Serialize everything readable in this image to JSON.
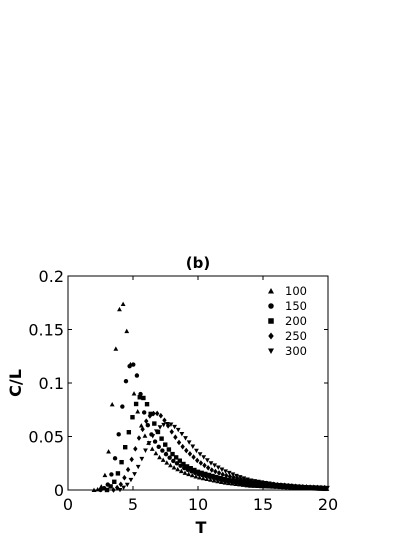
{
  "chart_data": {
    "type": "scatter",
    "title": "(b)",
    "xlabel": "T",
    "ylabel": "C/L",
    "xlim": [
      0,
      20
    ],
    "ylim": [
      0,
      0.2
    ],
    "xticks": [
      0,
      5,
      10,
      15,
      20
    ],
    "xtick_labels": [
      "0",
      "5",
      "10",
      "15",
      "20"
    ],
    "yticks": [
      0,
      0.05,
      0.1,
      0.15,
      0.2
    ],
    "ytick_labels": [
      "0",
      "0.05",
      "0.1",
      "0.15",
      "0.2"
    ],
    "grid": false,
    "legend_position": "top-right",
    "series": [
      {
        "name": "100",
        "marker": "triangle-up",
        "x": [
          2.0,
          2.5,
          3.0,
          3.3,
          3.6,
          3.9,
          4.1,
          4.3,
          4.6,
          5.0,
          5.5,
          6.0,
          6.5,
          7.0,
          8.0,
          9.0,
          10.0,
          12.0,
          14.0,
          16.0,
          18.0,
          20.0
        ],
        "y": [
          0.0,
          0.001,
          0.02,
          0.06,
          0.12,
          0.165,
          0.178,
          0.172,
          0.14,
          0.095,
          0.065,
          0.048,
          0.038,
          0.031,
          0.022,
          0.016,
          0.012,
          0.007,
          0.004,
          0.003,
          0.002,
          0.001
        ]
      },
      {
        "name": "150",
        "marker": "circle",
        "x": [
          2.5,
          3.0,
          3.5,
          4.0,
          4.3,
          4.6,
          4.9,
          5.2,
          5.5,
          5.8,
          6.2,
          6.6,
          7.0,
          8.0,
          9.0,
          10.0,
          12.0,
          14.0,
          16.0,
          18.0,
          20.0
        ],
        "y": [
          0.0,
          0.003,
          0.02,
          0.06,
          0.09,
          0.112,
          0.12,
          0.113,
          0.095,
          0.075,
          0.058,
          0.047,
          0.04,
          0.028,
          0.02,
          0.015,
          0.009,
          0.005,
          0.003,
          0.002,
          0.001
        ]
      },
      {
        "name": "200",
        "marker": "square",
        "x": [
          3.0,
          3.5,
          4.0,
          4.5,
          5.0,
          5.3,
          5.6,
          5.9,
          6.2,
          6.5,
          7.0,
          7.5,
          8.0,
          9.0,
          10.0,
          12.0,
          14.0,
          16.0,
          18.0,
          20.0
        ],
        "y": [
          0.0,
          0.006,
          0.02,
          0.045,
          0.07,
          0.083,
          0.088,
          0.085,
          0.077,
          0.066,
          0.052,
          0.042,
          0.034,
          0.023,
          0.017,
          0.01,
          0.006,
          0.004,
          0.002,
          0.001
        ]
      },
      {
        "name": "250",
        "marker": "diamond",
        "x": [
          3.5,
          4.0,
          4.5,
          5.0,
          5.5,
          6.0,
          6.4,
          6.8,
          7.2,
          7.6,
          8.0,
          8.5,
          9.0,
          10.0,
          11.0,
          12.0,
          14.0,
          16.0,
          18.0,
          20.0
        ],
        "y": [
          0.0,
          0.004,
          0.015,
          0.032,
          0.05,
          0.064,
          0.071,
          0.072,
          0.069,
          0.062,
          0.054,
          0.045,
          0.038,
          0.027,
          0.019,
          0.014,
          0.008,
          0.005,
          0.003,
          0.002
        ]
      },
      {
        "name": "300",
        "marker": "triangle-down",
        "x": [
          4.0,
          4.5,
          5.0,
          5.5,
          6.0,
          6.5,
          7.0,
          7.5,
          8.0,
          8.5,
          9.0,
          9.5,
          10.0,
          11.0,
          12.0,
          13.0,
          14.0,
          16.0,
          18.0,
          20.0
        ],
        "y": [
          0.0,
          0.004,
          0.012,
          0.024,
          0.038,
          0.05,
          0.058,
          0.062,
          0.061,
          0.056,
          0.049,
          0.042,
          0.035,
          0.025,
          0.018,
          0.013,
          0.009,
          0.005,
          0.003,
          0.002
        ]
      }
    ]
  }
}
